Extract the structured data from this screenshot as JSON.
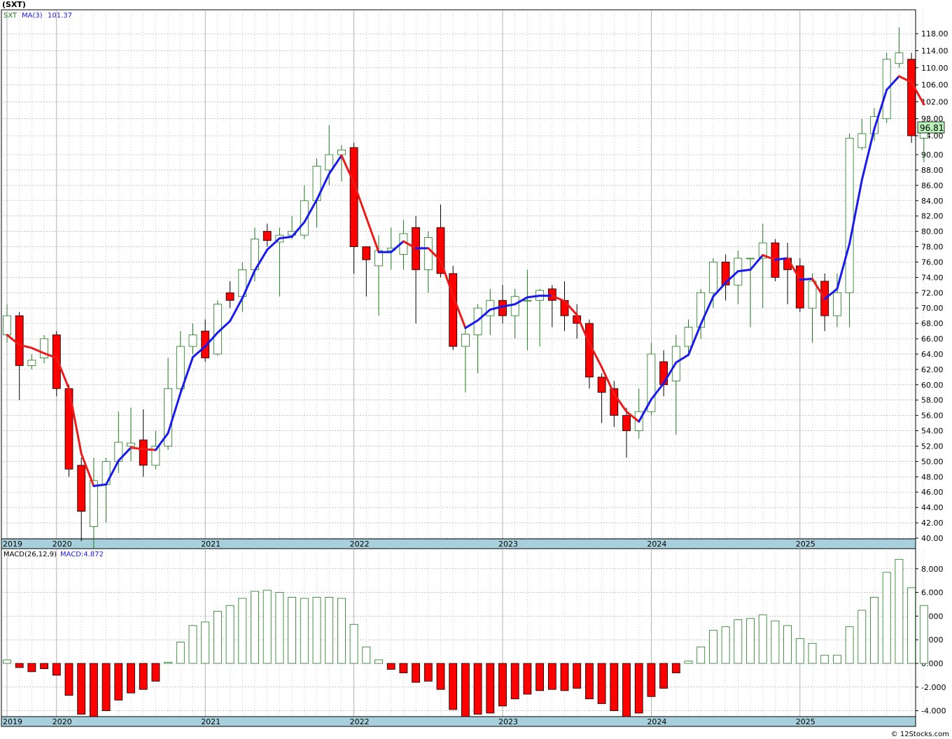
{
  "title": "(SXT)",
  "credit": "© 12Stocks.com",
  "colors": {
    "up": "#1a7a1a",
    "down": "#ff0000",
    "ma_up": "#1a1aee",
    "ma_down": "#ee1a1a",
    "grid": "#a0a0a0",
    "axis_band": "#a8d0dc",
    "last_price_bg": "#b8f0b8"
  },
  "chart_data": [
    {
      "type": "candlestick",
      "interval": "monthly",
      "legend": {
        "symbol": "SXT",
        "ma_label": "MA(3)",
        "ma_value": "101.37"
      },
      "last_price_label": "96.81",
      "ylim": [
        38,
        121
      ],
      "yticks": [
        40,
        42,
        44,
        46,
        48,
        50,
        52,
        54,
        56,
        58,
        60,
        62,
        64,
        66,
        68,
        70,
        72,
        74,
        76,
        78,
        80,
        82,
        84,
        86,
        88,
        90,
        94,
        98,
        102,
        106,
        110,
        114,
        118
      ],
      "ytick_labels": [
        "40.00",
        "42.00",
        "44.00",
        "46.00",
        "48.00",
        "50.00",
        "52.00",
        "54.00",
        "56.00",
        "58.00",
        "60.00",
        "62.00",
        "64.00",
        "66.00",
        "68.00",
        "70.00",
        "72.00",
        "74.00",
        "76.00",
        "78.00",
        "80.00",
        "82.00",
        "84.00",
        "86.00",
        "88.00",
        "90.00",
        "94.00",
        "98.00",
        "102.00",
        "106.00",
        "110.00",
        "114.00",
        "118.00"
      ],
      "year_labels": [
        {
          "label": "2019",
          "index": 0
        },
        {
          "label": "2020",
          "index": 4
        },
        {
          "label": "2021",
          "index": 16
        },
        {
          "label": "2022",
          "index": 28
        },
        {
          "label": "2023",
          "index": 40
        },
        {
          "label": "2024",
          "index": 52
        },
        {
          "label": "2025",
          "index": 64
        }
      ],
      "candles": [
        [
          66.5,
          69.0,
          70.5,
          65.5
        ],
        [
          69.0,
          62.5,
          69.5,
          58.0
        ],
        [
          62.5,
          63.2,
          64.0,
          62.0
        ],
        [
          63.5,
          66.0,
          66.5,
          62.8
        ],
        [
          66.5,
          59.5,
          67.0,
          58.5
        ],
        [
          59.5,
          49.0,
          60.0,
          48.0
        ],
        [
          49.5,
          43.5,
          50.5,
          39.5
        ],
        [
          41.5,
          47.5,
          50.5,
          37.8
        ],
        [
          47.0,
          50.0,
          50.5,
          42.0
        ],
        [
          50.0,
          52.5,
          56.5,
          48.5
        ],
        [
          52.0,
          52.4,
          57.0,
          50.0
        ],
        [
          52.8,
          49.5,
          56.8,
          48.0
        ],
        [
          49.5,
          52.0,
          54.0,
          49.0
        ],
        [
          52.0,
          59.5,
          63.5,
          51.5
        ],
        [
          59.5,
          65.0,
          67.0,
          58.5
        ],
        [
          65.0,
          66.5,
          68.0,
          64.0
        ],
        [
          67.0,
          63.5,
          68.5,
          63.0
        ],
        [
          64.0,
          70.5,
          71.0,
          63.8
        ],
        [
          72.0,
          71.0,
          73.5,
          70.0
        ],
        [
          71.5,
          75.0,
          76.0,
          69.5
        ],
        [
          75.0,
          79.0,
          80.5,
          73.5
        ],
        [
          80.0,
          78.8,
          81.0,
          78.0
        ],
        [
          78.6,
          79.5,
          80.5,
          71.5
        ],
        [
          79.5,
          80.0,
          82.0,
          79.0
        ],
        [
          79.5,
          84.0,
          86.0,
          79.0
        ],
        [
          84.0,
          88.5,
          89.5,
          80.5
        ],
        [
          88.0,
          90.0,
          96.5,
          86.0
        ],
        [
          90.0,
          91.0,
          92.0,
          86.5
        ],
        [
          91.5,
          78.0,
          92.5,
          74.5
        ],
        [
          78.0,
          76.3,
          78.0,
          71.5
        ],
        [
          75.5,
          77.5,
          79.5,
          69.0
        ],
        [
          77.5,
          77.8,
          80.5,
          75.0
        ],
        [
          77.0,
          79.7,
          81.5,
          75.0
        ],
        [
          80.5,
          75.0,
          82.0,
          68.0
        ],
        [
          75.0,
          79.2,
          80.0,
          72.0
        ],
        [
          80.5,
          74.5,
          83.5,
          74.0
        ],
        [
          74.5,
          65.0,
          75.5,
          64.5
        ],
        [
          65.0,
          66.6,
          67.5,
          59.0
        ],
        [
          66.5,
          70.0,
          70.5,
          61.5
        ],
        [
          69.0,
          71.0,
          72.5,
          66.5
        ],
        [
          71.0,
          69.0,
          73.0,
          68.0
        ],
        [
          69.0,
          71.5,
          72.5,
          66.0
        ],
        [
          71.0,
          71.0,
          75.0,
          64.5
        ],
        [
          71.0,
          72.3,
          72.5,
          65.0
        ],
        [
          72.5,
          71.0,
          73.0,
          67.5
        ],
        [
          71.0,
          69.0,
          73.5,
          67.0
        ],
        [
          69.0,
          68.0,
          70.5,
          66.0
        ],
        [
          68.0,
          61.0,
          68.5,
          59.5
        ],
        [
          61.0,
          59.0,
          61.5,
          55.0
        ],
        [
          59.5,
          56.0,
          60.5,
          54.5
        ],
        [
          56.0,
          54.0,
          57.0,
          50.5
        ],
        [
          54.0,
          56.5,
          59.5,
          53.0
        ],
        [
          56.5,
          64.0,
          65.5,
          56.0
        ],
        [
          63.0,
          60.0,
          64.5,
          58.5
        ],
        [
          60.5,
          65.0,
          66.5,
          53.5
        ],
        [
          65.0,
          67.5,
          68.5,
          64.0
        ],
        [
          67.5,
          72.0,
          72.5,
          66.0
        ],
        [
          72.0,
          76.0,
          76.5,
          70.0
        ],
        [
          76.0,
          73.0,
          77.0,
          71.0
        ],
        [
          73.0,
          76.5,
          77.5,
          70.5
        ],
        [
          76.5,
          76.5,
          76.5,
          67.5
        ],
        [
          76.5,
          78.5,
          81.0,
          70.0
        ],
        [
          78.5,
          74.0,
          79.0,
          73.5
        ],
        [
          76.5,
          75.0,
          78.5,
          70.5
        ],
        [
          75.5,
          70.0,
          76.5,
          69.5
        ],
        [
          70.0,
          73.5,
          74.5,
          65.5
        ],
        [
          73.5,
          69.0,
          74.5,
          67.0
        ],
        [
          69.0,
          72.0,
          74.5,
          67.5
        ],
        [
          72.0,
          93.5,
          94.5,
          67.5
        ],
        [
          91.5,
          94.5,
          98.0,
          91.0
        ],
        [
          94.5,
          98.5,
          100.5,
          93.0
        ],
        [
          98.0,
          112.0,
          113.5,
          97.0
        ],
        [
          111.0,
          113.5,
          119.5,
          110.0
        ],
        [
          112.0,
          94.0,
          113.5,
          92.5
        ],
        [
          93.5,
          96.8,
          97.0,
          89.0
        ]
      ],
      "ma_start_index": 0,
      "ma": [
        66.5,
        65.2,
        64.8,
        64.1,
        63.5,
        59.5,
        51.0,
        46.8,
        47.0,
        50.1,
        51.8,
        51.6,
        51.5,
        53.7,
        58.9,
        63.6,
        65.0,
        66.8,
        68.3,
        71.3,
        74.9,
        77.6,
        79.1,
        79.3,
        81.2,
        84.1,
        87.5,
        89.9,
        86.3,
        81.8,
        77.3,
        77.3,
        78.7,
        77.8,
        77.8,
        76.2,
        71.6,
        67.4,
        68.4,
        69.8,
        70.2,
        70.5,
        71.4,
        71.6,
        71.6,
        70.9,
        69.1,
        65.4,
        62.3,
        58.8,
        56.5,
        55.2,
        58.1,
        60.2,
        62.9,
        63.9,
        67.9,
        71.5,
        73.3,
        74.8,
        75.0,
        76.9,
        76.3,
        76.5,
        73.7,
        73.8,
        71.2,
        72.5,
        78.4,
        86.7,
        95.6,
        104.8,
        108.0,
        106.6,
        101.4
      ]
    },
    {
      "type": "bar",
      "name": "MACD",
      "legend": {
        "params": "MACD(26,12,9)",
        "value_label": "MACD:4.872"
      },
      "ylim": [
        -4.5,
        9.2
      ],
      "yticks": [
        -4,
        -2,
        0,
        2,
        4,
        6,
        8
      ],
      "ytick_labels": [
        "-4.000",
        "-2.000",
        "0.000",
        "2.000",
        "4.000",
        "6.000",
        "8.000"
      ],
      "year_labels": [
        {
          "label": "2019",
          "index": 0
        },
        {
          "label": "2020",
          "index": 4
        },
        {
          "label": "2021",
          "index": 16
        },
        {
          "label": "2022",
          "index": 28
        },
        {
          "label": "2023",
          "index": 40
        },
        {
          "label": "2024",
          "index": 52
        },
        {
          "label": "2025",
          "index": 64
        }
      ],
      "values": [
        0.3,
        -0.35,
        -0.7,
        -0.45,
        -1.0,
        -2.7,
        -4.3,
        -4.6,
        -4.0,
        -3.1,
        -2.5,
        -2.2,
        -1.5,
        0.1,
        1.8,
        3.2,
        3.5,
        4.4,
        4.9,
        5.5,
        6.1,
        6.2,
        6.0,
        5.6,
        5.5,
        5.6,
        5.6,
        5.5,
        3.3,
        1.4,
        0.3,
        -0.5,
        -0.8,
        -1.6,
        -1.5,
        -2.2,
        -3.9,
        -4.5,
        -4.3,
        -4.2,
        -3.6,
        -3.0,
        -2.6,
        -2.3,
        -2.2,
        -2.3,
        -2.1,
        -3.0,
        -3.4,
        -4.0,
        -4.5,
        -4.2,
        -2.8,
        -2.1,
        -0.8,
        0.2,
        1.4,
        2.8,
        3.1,
        3.7,
        3.8,
        4.1,
        3.6,
        3.2,
        2.1,
        1.7,
        0.7,
        0.7,
        3.1,
        4.5,
        5.6,
        7.7,
        8.8,
        6.4,
        4.9
      ]
    }
  ]
}
